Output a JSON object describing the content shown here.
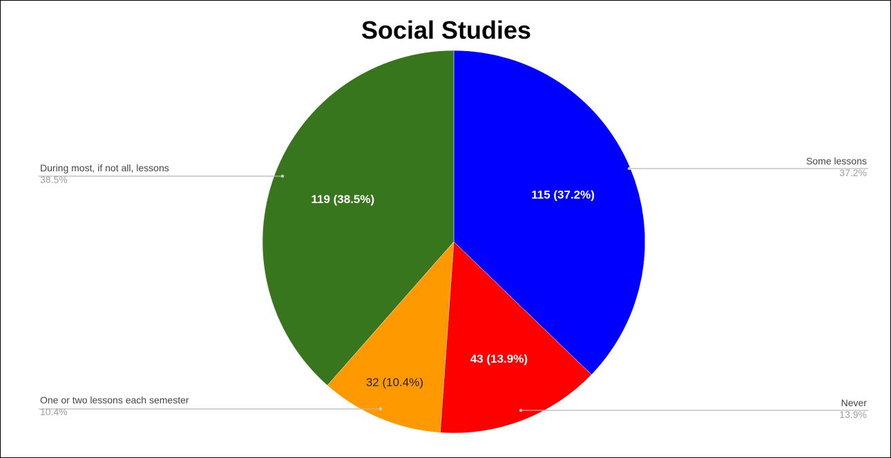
{
  "chart_data": {
    "type": "pie",
    "title": "Social Studies",
    "slices": [
      {
        "label": "Some lessons",
        "value": 115,
        "percent": "37.2%",
        "data_label": "115 (37.2%)",
        "color": "#0000ff",
        "label_color": "#ffffff",
        "side": "right"
      },
      {
        "label": "Never",
        "value": 43,
        "percent": "13.9%",
        "data_label": "43 (13.9%)",
        "color": "#ff0000",
        "label_color": "#ffffff",
        "side": "right"
      },
      {
        "label": "One or two lessons each semester",
        "value": 32,
        "percent": "10.4%",
        "data_label": "32 (10.4%)",
        "color": "#ff9900",
        "label_color": "#222222",
        "side": "left"
      },
      {
        "label": "During most, if not all, lessons",
        "value": 119,
        "percent": "38.5%",
        "data_label": "119 (38.5%)",
        "color": "#38761d",
        "label_color": "#ffffff",
        "side": "left"
      }
    ],
    "start_angle": "12 o'clock",
    "direction": "clockwise",
    "legend": "labeled callouts on left and right"
  }
}
